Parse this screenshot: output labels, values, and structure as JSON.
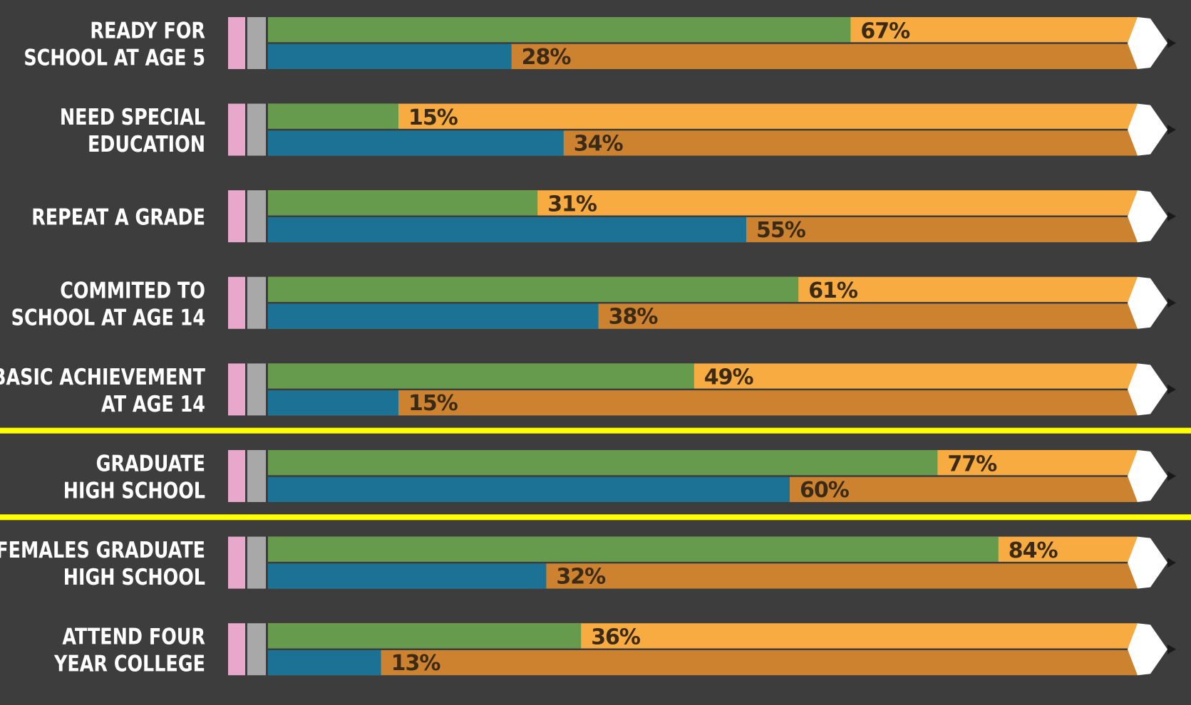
{
  "chart_data": {
    "type": "bar",
    "categories": [
      [
        "READY FOR",
        "SCHOOL AT AGE 5"
      ],
      [
        "NEED SPECIAL",
        "EDUCATION"
      ],
      [
        "REPEAT A GRADE"
      ],
      [
        "COMMITED TO",
        "SCHOOL AT AGE 14"
      ],
      [
        "BASIC ACHIEVEMENT",
        "AT AGE 14"
      ],
      [
        "GRADUATE",
        "HIGH SCHOOL"
      ],
      [
        "FEMALES GRADUATE",
        "HIGH SCHOOL"
      ],
      [
        "ATTEND FOUR",
        "YEAR COLLEGE"
      ]
    ],
    "series": [
      {
        "values": [
          67,
          15,
          31,
          61,
          49,
          77,
          84,
          36
        ],
        "color": "#669a4d",
        "track_color": "#f7ab40"
      },
      {
        "values": [
          28,
          34,
          55,
          38,
          15,
          60,
          32,
          13
        ],
        "color": "#1b7294",
        "track_color": "#cd8230"
      }
    ],
    "label_suffix": "%",
    "xlim": [
      0,
      100
    ],
    "group_dividers_after": [
      4,
      5
    ],
    "divider_color": "#ffff00",
    "background_color": "#3d3d3d",
    "eraser_color": "#e8a8cc",
    "ferrule_color": "#a8a8a8",
    "tip_color": "#ffffff"
  }
}
